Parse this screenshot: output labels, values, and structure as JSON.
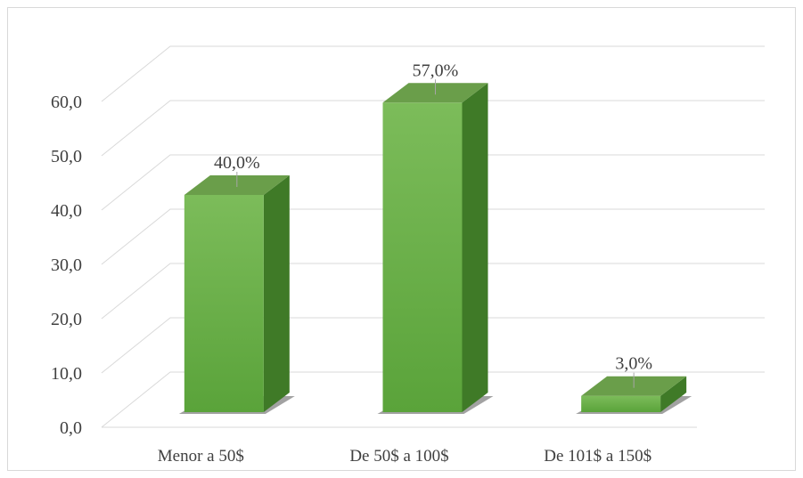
{
  "chart_data": {
    "type": "bar",
    "style": "3d-column",
    "categories": [
      "Menor a 50$",
      "De 50$ a 100$",
      "De 101$ a 150$"
    ],
    "values": [
      40.0,
      57.0,
      3.0
    ],
    "data_labels": [
      "40,0%",
      "57,0%",
      "3,0%"
    ],
    "y_ticks": [
      "0,0",
      "10,0",
      "20,0",
      "30,0",
      "40,0",
      "50,0",
      "60,0"
    ],
    "ylim": [
      0,
      60
    ],
    "grid": true,
    "legend": "none",
    "colors": {
      "front_top": "#7cbc5a",
      "front_bottom": "#5aa33a",
      "side": "#3f7a27",
      "top": "#6a9e4a",
      "grid": "#d9d9d9",
      "axis_text": "#404040"
    }
  }
}
